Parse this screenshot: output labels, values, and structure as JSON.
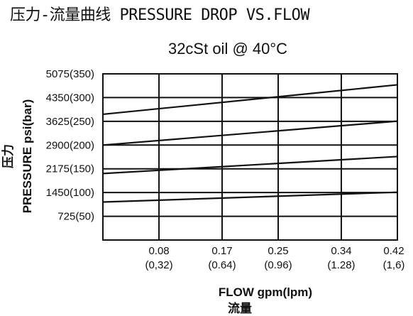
{
  "title": "压力-流量曲线 PRESSURE DROP VS.FLOW",
  "chart_data": {
    "type": "line",
    "title": "压力-流量曲线 PRESSURE DROP VS.FLOW",
    "subtitle": "32cSt oil @ 40°C",
    "xlabel": "FLOW gpm(lpm)",
    "xlabel_cn": "流量",
    "ylabel": "PRESSURE psi(bar)",
    "ylabel_cn": "压力",
    "xlim": [
      0,
      0.42
    ],
    "ylim": [
      0,
      5075
    ],
    "grid": true,
    "x_ticks": [
      {
        "value": 0.08,
        "label": "0.08",
        "sublabel": "(0,32)"
      },
      {
        "value": 0.17,
        "label": "0.17",
        "sublabel": "(0.64)"
      },
      {
        "value": 0.25,
        "label": "0.25",
        "sublabel": "(0.96)"
      },
      {
        "value": 0.34,
        "label": "0.34",
        "sublabel": "(1.28)"
      },
      {
        "value": 0.42,
        "label": "0.42",
        "sublabel": "(1,6)"
      }
    ],
    "y_ticks": [
      {
        "value": 725,
        "label": "725(50)"
      },
      {
        "value": 1450,
        "label": "1450(100)"
      },
      {
        "value": 2175,
        "label": "2175(150)"
      },
      {
        "value": 2900,
        "label": "2900(200)"
      },
      {
        "value": 3625,
        "label": "3625(250)"
      },
      {
        "value": 4350,
        "label": "4350(300)"
      },
      {
        "value": 5075,
        "label": "5075(350)"
      }
    ],
    "series": [
      {
        "x": [
          0,
          0.42
        ],
        "y": [
          3840,
          4740
        ]
      },
      {
        "x": [
          0,
          0.42
        ],
        "y": [
          2900,
          3630
        ]
      },
      {
        "x": [
          0,
          0.42
        ],
        "y": [
          2030,
          2550
        ]
      },
      {
        "x": [
          0,
          0.42
        ],
        "y": [
          1160,
          1460
        ]
      }
    ]
  }
}
